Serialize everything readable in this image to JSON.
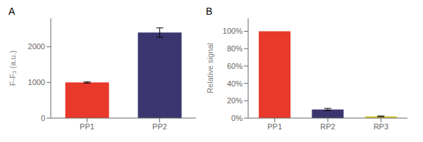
{
  "chart_data": [
    {
      "type": "bar",
      "title": "A",
      "categories": [
        "PP1",
        "PP2"
      ],
      "values": [
        1000,
        2400
      ],
      "errors": [
        20,
        130
      ],
      "colors": [
        "#E8392A",
        "#3C3670"
      ],
      "ylabel": "F-F₀ (a.u.)",
      "ylim": [
        0,
        2800
      ],
      "yticks": [
        0,
        1000,
        2000
      ]
    },
    {
      "type": "bar",
      "title": "B",
      "categories": [
        "PP1",
        "RP2",
        "RP3"
      ],
      "values": [
        100,
        10,
        2
      ],
      "errors": [
        0,
        1.2,
        0.4
      ],
      "colors": [
        "#E8392A",
        "#3C3670",
        "#D4C832"
      ],
      "ylabel": "Relative signal",
      "ylim": [
        0,
        115
      ],
      "yticks": [
        {
          "value": 0,
          "label": "0%"
        },
        {
          "value": 20,
          "label": "20%"
        },
        {
          "value": 40,
          "label": "40%"
        },
        {
          "value": 60,
          "label": "60%"
        },
        {
          "value": 80,
          "label": "80%"
        },
        {
          "value": 100,
          "label": "100%"
        }
      ]
    }
  ]
}
